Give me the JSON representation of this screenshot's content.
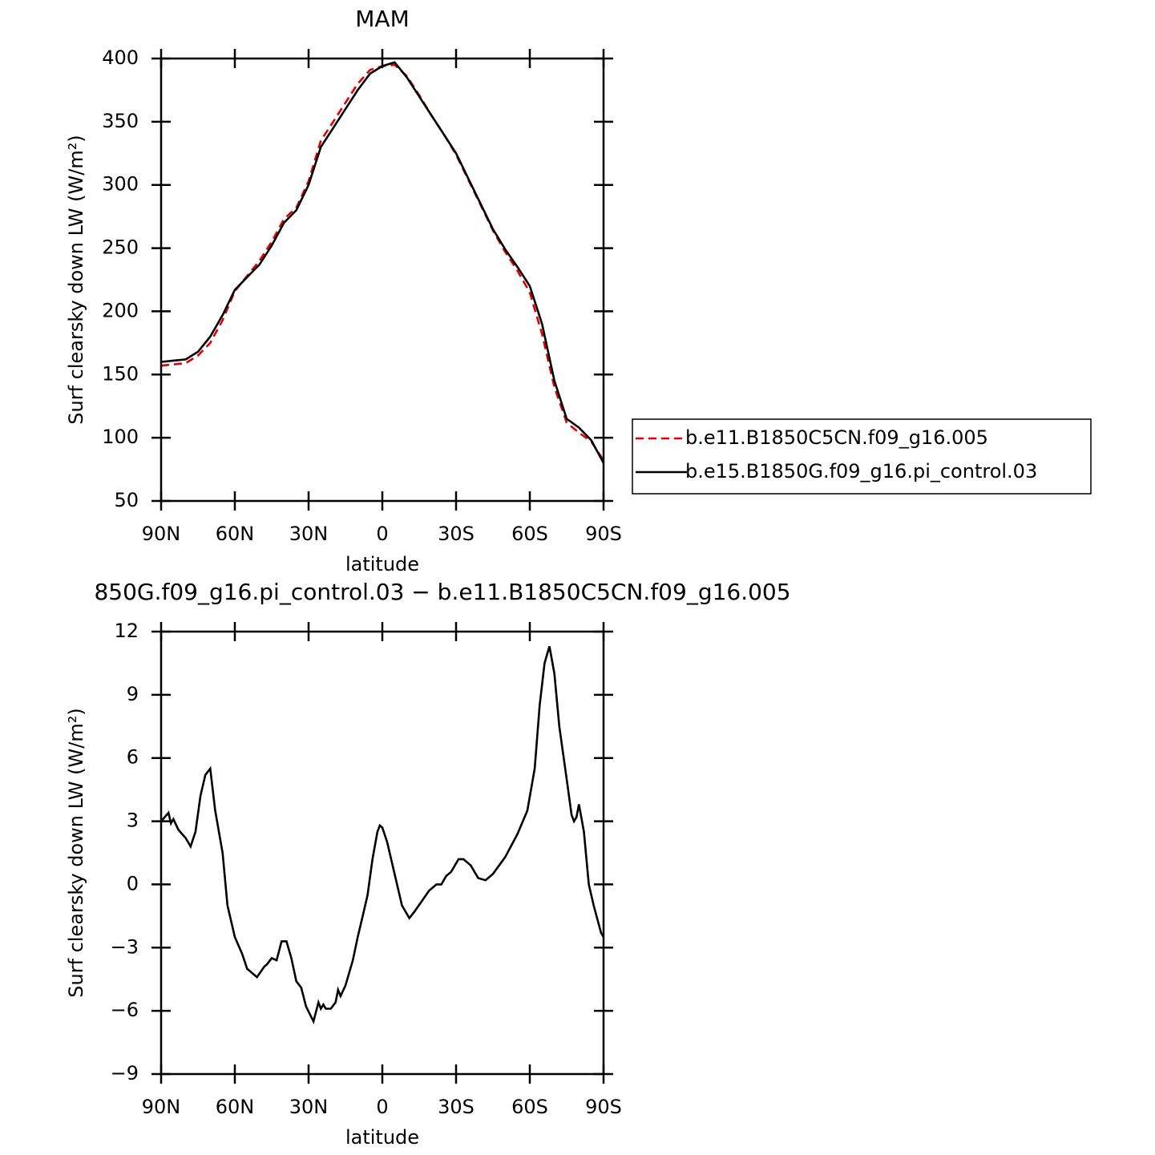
{
  "chart_data": [
    {
      "type": "line",
      "title": "MAM",
      "xlabel": "latitude",
      "ylabel": "Surf clearsky down LW (W/m²)",
      "x": [
        90,
        85,
        80,
        75,
        70,
        65,
        60,
        55,
        50,
        45,
        40,
        35,
        30,
        25,
        20,
        15,
        10,
        5,
        0,
        -5,
        -10,
        -15,
        -20,
        -25,
        -30,
        -35,
        -40,
        -45,
        -50,
        -55,
        -60,
        -65,
        -70,
        -75,
        -80,
        -85,
        -90
      ],
      "series": [
        {
          "name": "b.e11.B1850C5CN.f09_g16.005",
          "color": "#e00000",
          "dash": true,
          "values": [
            157,
            158,
            159,
            165,
            175,
            193,
            216,
            228,
            240,
            255,
            273,
            282,
            303,
            335,
            350,
            365,
            380,
            391,
            394,
            395,
            386,
            371,
            355,
            340,
            324,
            304,
            284,
            264,
            247,
            232,
            215,
            182,
            140,
            112,
            104,
            97,
            82
          ]
        },
        {
          "name": "b.e15.B1850G.f09_g16.pi_control.03",
          "color": "#000000",
          "dash": false,
          "values": [
            160,
            161,
            162,
            168,
            180,
            197,
            217,
            227,
            237,
            252,
            270,
            280,
            300,
            330,
            345,
            360,
            375,
            388,
            394,
            397,
            385,
            370,
            355,
            340,
            325,
            305,
            285,
            265,
            249,
            235,
            220,
            190,
            145,
            115,
            108,
            98,
            80
          ]
        }
      ],
      "xlim": [
        90,
        -90
      ],
      "xticks": [
        {
          "value": 90,
          "label": "90N"
        },
        {
          "value": 60,
          "label": "60N"
        },
        {
          "value": 30,
          "label": "30N"
        },
        0,
        {
          "value": -30,
          "label": "30S"
        },
        {
          "value": -60,
          "label": "60S"
        },
        {
          "value": -90,
          "label": "90S"
        }
      ],
      "ylim": [
        50,
        400
      ],
      "yticks": [
        50,
        100,
        150,
        200,
        250,
        300,
        350,
        400
      ],
      "legend": "right"
    },
    {
      "type": "line",
      "title": "850G.f09_g16.pi_control.03 − b.e11.B1850C5CN.f09_g16.005",
      "xlabel": "latitude",
      "ylabel": "Surf clearsky down LW (W/m²)",
      "x": [
        90,
        87,
        86,
        85,
        83,
        80,
        78,
        76,
        74,
        72,
        70,
        68,
        65,
        63,
        60,
        57,
        55,
        51,
        48,
        47,
        45,
        43,
        41,
        39,
        37,
        35,
        33,
        31,
        28,
        26,
        25,
        24,
        23,
        21,
        19,
        18,
        17,
        15,
        12,
        10,
        8,
        6,
        4,
        2,
        1,
        0,
        -2,
        -5,
        -8,
        -11,
        -13,
        -16,
        -19,
        -22,
        -24,
        -26,
        -28,
        -31,
        -33,
        -36,
        -39,
        -42,
        -45,
        -50,
        -55,
        -59,
        -62,
        -64,
        -66,
        -68,
        -70,
        -72,
        -75,
        -77,
        -78,
        -79,
        -80,
        -82,
        -84,
        -86,
        -89,
        -90
      ],
      "values": [
        3.0,
        3.4,
        2.9,
        3.1,
        2.6,
        2.2,
        1.8,
        2.5,
        4.2,
        5.2,
        5.5,
        3.5,
        1.5,
        -1.0,
        -2.5,
        -3.3,
        -4.0,
        -4.4,
        -3.9,
        -3.8,
        -3.5,
        -3.6,
        -2.7,
        -2.7,
        -3.5,
        -4.6,
        -4.9,
        -5.8,
        -6.5,
        -5.6,
        -5.9,
        -5.7,
        -5.9,
        -5.9,
        -5.6,
        -5.0,
        -5.3,
        -4.8,
        -3.6,
        -2.5,
        -1.5,
        -0.5,
        1.2,
        2.5,
        2.8,
        2.7,
        2.0,
        0.5,
        -1.0,
        -1.6,
        -1.3,
        -0.8,
        -0.3,
        0.0,
        0.0,
        0.4,
        0.6,
        1.2,
        1.2,
        0.9,
        0.3,
        0.2,
        0.5,
        1.3,
        2.4,
        3.5,
        5.5,
        8.5,
        10.5,
        11.3,
        10.0,
        7.5,
        5.0,
        3.3,
        3.0,
        3.2,
        3.8,
        2.5,
        0.0,
        -1.0,
        -2.3,
        -2.5
      ],
      "color": "#000000",
      "xlim": [
        90,
        -90
      ],
      "xticks": [
        {
          "value": 90,
          "label": "90N"
        },
        {
          "value": 60,
          "label": "60N"
        },
        {
          "value": 30,
          "label": "30N"
        },
        0,
        {
          "value": -30,
          "label": "30S"
        },
        {
          "value": -60,
          "label": "60S"
        },
        {
          "value": -90,
          "label": "90S"
        }
      ],
      "ylim": [
        -9,
        12
      ],
      "yticks": [
        {
          "value": -9,
          "label": "−9"
        },
        {
          "value": -6,
          "label": "−6"
        },
        {
          "value": -3,
          "label": "−3"
        },
        0,
        3,
        6,
        9,
        12
      ]
    }
  ]
}
